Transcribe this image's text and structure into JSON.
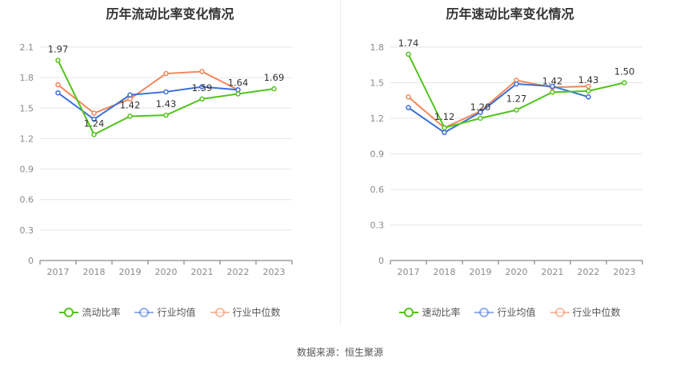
{
  "chart_data": [
    {
      "type": "line",
      "title": "历年流动比率变化情况",
      "categories": [
        "2017",
        "2018",
        "2019",
        "2020",
        "2021",
        "2022",
        "2023"
      ],
      "yticks": [
        "0",
        "0.3",
        "0.6",
        "0.9",
        "1.2",
        "1.5",
        "1.8",
        "2.1"
      ],
      "ylim": [
        0,
        2.1
      ],
      "grid": true,
      "legend_position": "bottom",
      "series": [
        {
          "name": "流动比率",
          "color": "#52c41a",
          "values": [
            1.97,
            1.24,
            1.42,
            1.43,
            1.59,
            1.64,
            1.69
          ],
          "labels": [
            "1.97",
            "1.24",
            "1.42",
            "1.43",
            "1.59",
            "1.64",
            "1.69"
          ]
        },
        {
          "name": "行业均值",
          "color": "#3a6fd8",
          "values": [
            1.65,
            1.39,
            1.63,
            1.66,
            1.71,
            1.68,
            null
          ]
        },
        {
          "name": "行业中位数",
          "color": "#f0885a",
          "values": [
            1.73,
            1.45,
            1.59,
            1.84,
            1.86,
            1.68,
            null
          ]
        }
      ]
    },
    {
      "type": "line",
      "title": "历年速动比率变化情况",
      "categories": [
        "2017",
        "2018",
        "2019",
        "2020",
        "2021",
        "2022",
        "2023"
      ],
      "yticks": [
        "0",
        "0.3",
        "0.6",
        "0.9",
        "1.2",
        "1.5",
        "1.8"
      ],
      "ylim": [
        0,
        1.8
      ],
      "grid": true,
      "legend_position": "bottom",
      "series": [
        {
          "name": "速动比率",
          "color": "#52c41a",
          "values": [
            1.74,
            1.12,
            1.2,
            1.27,
            1.42,
            1.43,
            1.5
          ],
          "labels": [
            "1.74",
            "1.12",
            "1.20",
            "1.27",
            "1.42",
            "1.43",
            "1.50"
          ]
        },
        {
          "name": "行业均值",
          "color": "#3a6fd8",
          "values": [
            1.29,
            1.08,
            1.25,
            1.49,
            1.47,
            1.38,
            null
          ]
        },
        {
          "name": "行业中位数",
          "color": "#f0885a",
          "values": [
            1.38,
            1.12,
            1.26,
            1.52,
            1.46,
            1.47,
            null
          ]
        }
      ]
    }
  ],
  "source": "数据来源：恒生聚源"
}
